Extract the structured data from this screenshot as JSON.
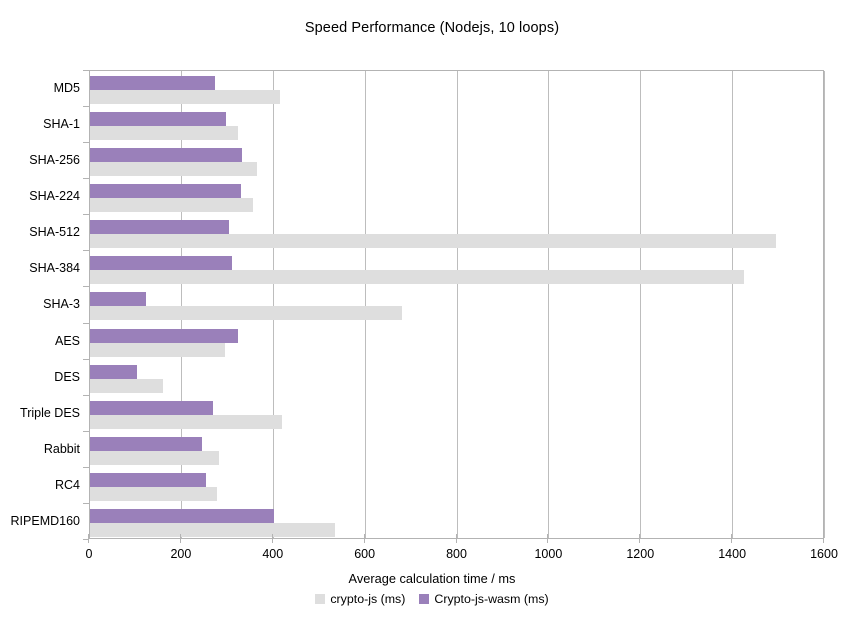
{
  "chart_data": {
    "type": "bar",
    "orientation": "horizontal",
    "title": "Speed Performance (Nodejs, 10 loops)",
    "xlabel": "Average calculation time / ms",
    "xlim": [
      0,
      1600
    ],
    "xticks": [
      0,
      200,
      400,
      600,
      800,
      1000,
      1200,
      1400,
      1600
    ],
    "grid": true,
    "legend_position": "bottom",
    "bar_order_note": "within each category the Crypto-js-wasm bar is drawn on top, crypto-js below",
    "categories": [
      "MD5",
      "SHA-1",
      "SHA-256",
      "SHA-224",
      "SHA-512",
      "SHA-384",
      "SHA-3",
      "AES",
      "DES",
      "Triple DES",
      "Rabbit",
      "RC4",
      "RIPEMD160"
    ],
    "series": [
      {
        "name": "crypto-js (ms)",
        "color": "#dedede",
        "values": [
          413,
          321,
          363,
          354,
          1493,
          1423,
          680,
          294,
          158,
          418,
          281,
          277,
          534
        ]
      },
      {
        "name": "Crypto-js-wasm (ms)",
        "color": "#9a80ba",
        "values": [
          272,
          296,
          331,
          329,
          302,
          309,
          122,
          321,
          102,
          268,
          244,
          252,
          400
        ]
      }
    ],
    "colors": {
      "gridline": "#bdbdbd",
      "axis": "#b3b3b3",
      "text": "#000000",
      "background": "#ffffff"
    }
  }
}
